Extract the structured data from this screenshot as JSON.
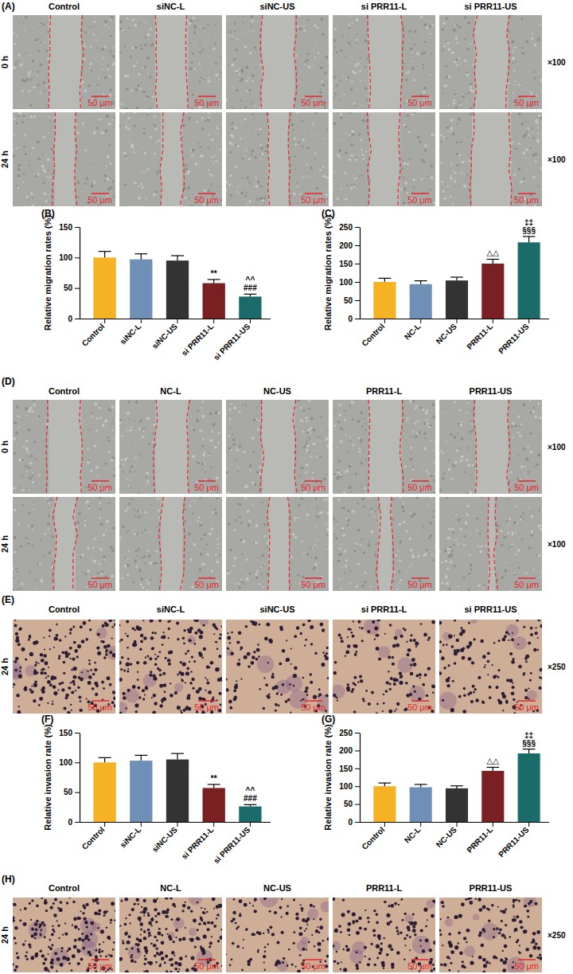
{
  "image_panels": [
    {
      "label": "(A)",
      "columns": [
        "Control",
        "siNC-L",
        "siNC-US",
        "si PRR11-L",
        "si PRR11-US"
      ],
      "rows": [
        "0 h",
        "24 h"
      ],
      "magnification": "×100",
      "scale_bar": "50 μm"
    },
    {
      "label": "(D)",
      "columns": [
        "Control",
        "NC-L",
        "NC-US",
        "PRR11-L",
        "PRR11-US"
      ],
      "rows": [
        "0 h",
        "24 h"
      ],
      "magnification": "×100",
      "scale_bar": "50 μm"
    },
    {
      "label": "(E)",
      "columns": [
        "Control",
        "siNC-L",
        "siNC-US",
        "si PRR11-L",
        "si PRR11-US"
      ],
      "rows": [
        "24 h"
      ],
      "magnification": "×250",
      "scale_bar": "50 μm"
    },
    {
      "label": "(H)",
      "columns": [
        "Control",
        "NC-L",
        "NC-US",
        "PRR11-L",
        "PRR11-US"
      ],
      "rows": [
        "24 h"
      ],
      "magnification": "×250",
      "scale_bar": "50 μm"
    }
  ],
  "chart_data": [
    {
      "type": "bar",
      "panel": "(B)",
      "y_label": "Relative migration rates (%)",
      "categories": [
        "Control",
        "siNC-L",
        "siNC-US",
        "si PRR11-L",
        "si PRR11-US"
      ],
      "values": [
        100,
        97,
        95,
        58,
        36
      ],
      "errors": [
        10,
        9,
        8,
        6,
        4
      ],
      "significance": [
        null,
        null,
        null,
        [
          "**"
        ],
        [
          "^^",
          "###"
        ]
      ],
      "colors": [
        "#f5b225",
        "#6f8fb7",
        "#333333",
        "#7a1f22",
        "#1b6b6a"
      ],
      "ylim": [
        0,
        150
      ],
      "yticks": [
        0,
        50,
        100,
        150
      ]
    },
    {
      "type": "bar",
      "panel": "(C)",
      "y_label": "Relative migration rates (%)",
      "categories": [
        "Control",
        "NC-L",
        "NC-US",
        "PRR11-L",
        "PRR11-US"
      ],
      "values": [
        100,
        94,
        104,
        150,
        208
      ],
      "errors": [
        10,
        9,
        9,
        12,
        16
      ],
      "significance": [
        null,
        null,
        null,
        [
          "△△"
        ],
        [
          "‡‡",
          "§§§"
        ]
      ],
      "colors": [
        "#f5b225",
        "#6f8fb7",
        "#333333",
        "#7a1f22",
        "#1b6b6a"
      ],
      "ylim": [
        0,
        250
      ],
      "yticks": [
        0,
        50,
        100,
        150,
        200,
        250
      ]
    },
    {
      "type": "bar",
      "panel": "(F)",
      "y_label": "Relative invasion rate (%)",
      "categories": [
        "Control",
        "siNC-L",
        "siNC-US",
        "si PRR11-L",
        "si PRR11-US"
      ],
      "values": [
        100,
        103,
        105,
        57,
        26
      ],
      "errors": [
        8,
        9,
        10,
        6,
        3
      ],
      "significance": [
        null,
        null,
        null,
        [
          "**"
        ],
        [
          "^^",
          "###"
        ]
      ],
      "colors": [
        "#f5b225",
        "#6f8fb7",
        "#333333",
        "#7a1f22",
        "#1b6b6a"
      ],
      "ylim": [
        0,
        150
      ],
      "yticks": [
        0,
        50,
        100,
        150
      ]
    },
    {
      "type": "bar",
      "panel": "(G)",
      "y_label": "Relative invasion rate (%)",
      "categories": [
        "Control",
        "NC-L",
        "NC-US",
        "PRR11-L",
        "PRR11-US"
      ],
      "values": [
        100,
        97,
        94,
        143,
        192
      ],
      "errors": [
        9,
        8,
        7,
        10,
        12
      ],
      "significance": [
        null,
        null,
        null,
        [
          "△△"
        ],
        [
          "‡‡",
          "§§§"
        ]
      ],
      "colors": [
        "#f5b225",
        "#6f8fb7",
        "#333333",
        "#7a1f22",
        "#1b6b6a"
      ],
      "ylim": [
        0,
        250
      ],
      "yticks": [
        0,
        50,
        100,
        150,
        200,
        250
      ]
    }
  ]
}
